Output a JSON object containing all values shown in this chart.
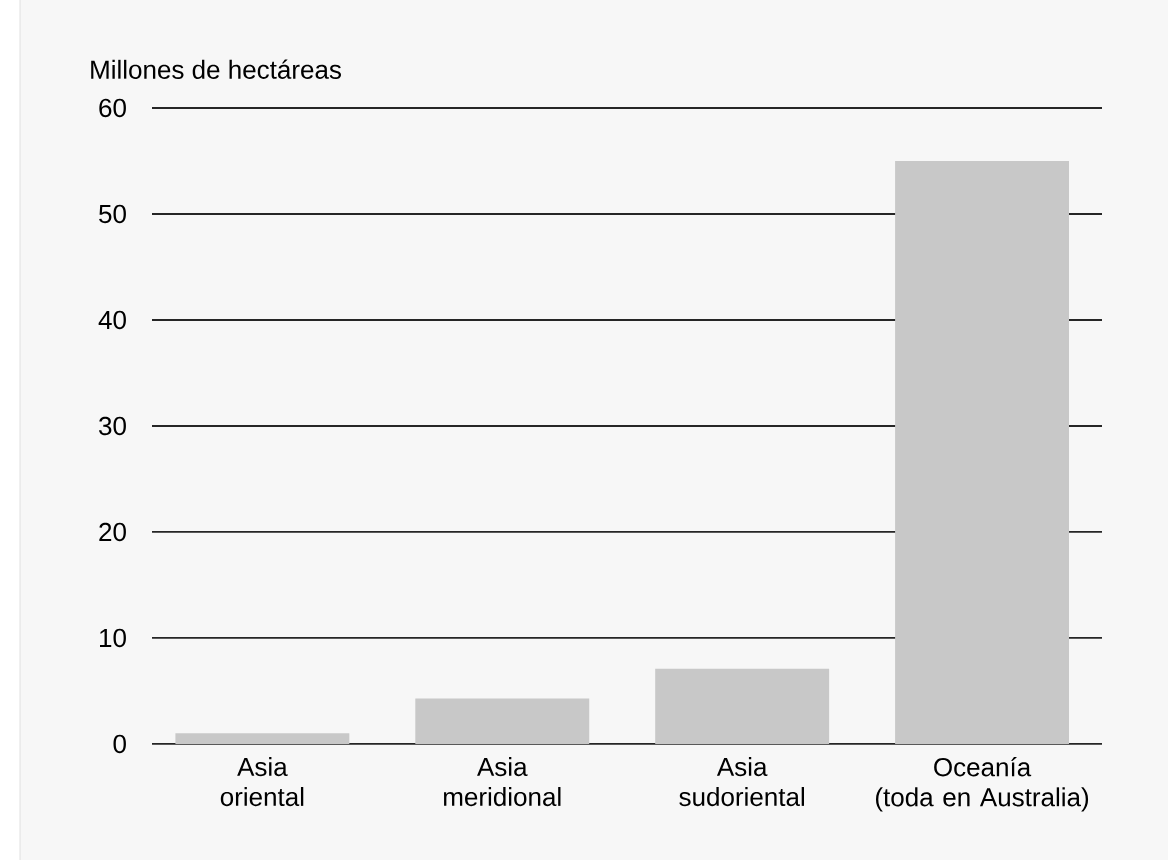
{
  "chart_data": {
    "type": "bar",
    "ylabel": "Millones de hectáreas",
    "categories": [
      "Asia oriental",
      "Asia meridional",
      "Asia sudoriental",
      "Oceanía (toda en Australia)"
    ],
    "values": [
      1.0,
      4.3,
      7.1,
      55
    ],
    "color": "#c8c8c8",
    "ylim": [
      0,
      60
    ],
    "yticks": [
      0,
      10,
      20,
      30,
      40,
      50,
      60
    ],
    "grid": "y"
  }
}
